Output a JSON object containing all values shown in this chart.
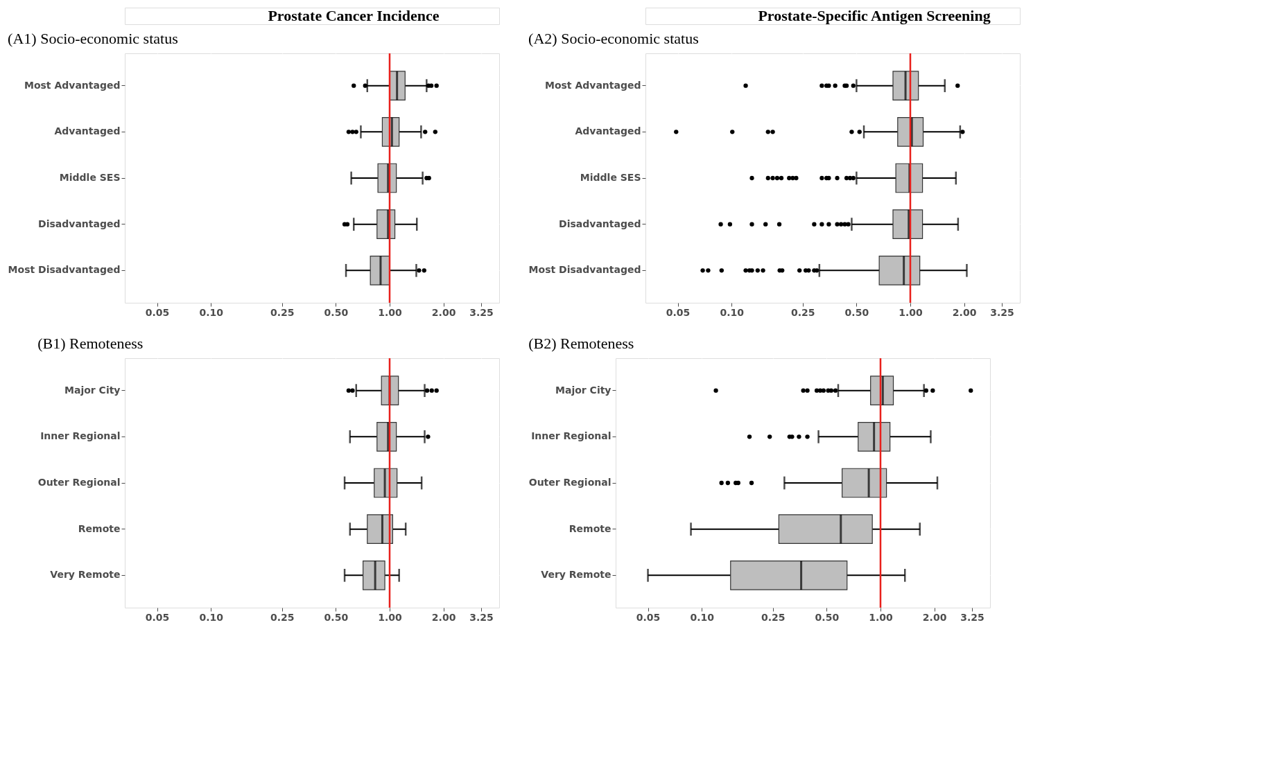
{
  "chart_data": [
    {
      "type": "box",
      "orientation": "horizontal",
      "annotations": [
        "Prostate Cancer Incidence"
      ],
      "title": "(A1) Socio-economic status",
      "color": "#bebebe",
      "grid": true,
      "log": "x",
      "categories": [
        "Most Advantaged",
        "Advantaged",
        "Middle SES",
        "Disadvantaged",
        "Most Disadvantaged"
      ],
      "boxes": [
        {
          "low": 0.75,
          "q1": 1.0,
          "median": 1.1,
          "q3": 1.22,
          "high": 1.61,
          "outliers": [
            0.63,
            0.73,
            1.65,
            1.71,
            1.83
          ]
        },
        {
          "low": 0.69,
          "q1": 0.91,
          "median": 1.03,
          "q3": 1.13,
          "high": 1.5,
          "outliers": [
            0.59,
            0.62,
            0.65,
            1.58,
            1.8
          ]
        },
        {
          "low": 0.61,
          "q1": 0.86,
          "median": 0.98,
          "q3": 1.09,
          "high": 1.53,
          "outliers": [
            1.61,
            1.66
          ]
        },
        {
          "low": 0.63,
          "q1": 0.85,
          "median": 0.98,
          "q3": 1.07,
          "high": 1.42,
          "outliers": [
            0.56,
            0.58
          ]
        },
        {
          "low": 0.57,
          "q1": 0.78,
          "median": 0.89,
          "q3": 1.0,
          "high": 1.41,
          "outliers": [
            1.46,
            1.56
          ]
        }
      ],
      "xlim": [
        0.033,
        4.1
      ],
      "xticks": [
        0.05,
        {
          "value": 0.1,
          "label": "0.10"
        },
        0.25,
        {
          "value": 0.5,
          "label": "0.50"
        },
        {
          "value": 1,
          "label": "1.00"
        },
        {
          "value": 2,
          "label": "2.00"
        },
        3.25
      ],
      "ref_lines": [
        {
          "axis": "x",
          "value": 1,
          "color": "#e8201c"
        }
      ]
    },
    {
      "type": "box",
      "orientation": "horizontal",
      "annotations": [
        "Prostate-Specific Antigen Screening"
      ],
      "title": "(A2) Socio-economic status",
      "color": "#bebebe",
      "grid": true,
      "log": "x",
      "categories": [
        "Most Advantaged",
        "Advantaged",
        "Middle SES",
        "Disadvantaged",
        "Most Disadvantaged"
      ],
      "boxes": [
        {
          "low": 0.5,
          "q1": 0.8,
          "median": 0.94,
          "q3": 1.11,
          "high": 1.56,
          "outliers": [
            0.12,
            0.32,
            0.34,
            0.35,
            0.38,
            0.43,
            0.44,
            0.48,
            1.84
          ]
        },
        {
          "low": 0.55,
          "q1": 0.85,
          "median": 1.02,
          "q3": 1.18,
          "high": 1.9,
          "outliers": [
            0.049,
            0.101,
            0.16,
            0.17,
            0.47,
            0.52,
            1.96
          ]
        },
        {
          "low": 0.5,
          "q1": 0.83,
          "median": 0.99,
          "q3": 1.17,
          "high": 1.8,
          "outliers": [
            0.13,
            0.16,
            0.17,
            0.18,
            0.19,
            0.21,
            0.22,
            0.23,
            0.32,
            0.34,
            0.35,
            0.39,
            0.44,
            0.46,
            0.48
          ]
        },
        {
          "low": 0.47,
          "q1": 0.8,
          "median": 0.98,
          "q3": 1.17,
          "high": 1.85,
          "outliers": [
            0.087,
            0.098,
            0.13,
            0.155,
            0.185,
            0.29,
            0.32,
            0.35,
            0.39,
            0.41,
            0.43,
            0.45
          ]
        },
        {
          "low": 0.31,
          "q1": 0.67,
          "median": 0.92,
          "q3": 1.13,
          "high": 2.07,
          "outliers": [
            0.069,
            0.074,
            0.088,
            0.12,
            0.126,
            0.13,
            0.14,
            0.15,
            0.186,
            0.192,
            0.24,
            0.26,
            0.27,
            0.29,
            0.3
          ]
        }
      ],
      "xlim": [
        0.033,
        4.1
      ],
      "xticks": [
        0.05,
        {
          "value": 0.1,
          "label": "0.10"
        },
        0.25,
        {
          "value": 0.5,
          "label": "0.50"
        },
        {
          "value": 1,
          "label": "1.00"
        },
        {
          "value": 2,
          "label": "2.00"
        },
        3.25
      ],
      "ref_lines": [
        {
          "axis": "x",
          "value": 1,
          "color": "#e8201c"
        }
      ]
    },
    {
      "type": "box",
      "orientation": "horizontal",
      "title": "(B1) Remoteness",
      "color": "#bebebe",
      "grid": true,
      "log": "x",
      "categories": [
        "Major City",
        "Inner Regional",
        "Outer Regional",
        "Remote",
        "Very Remote"
      ],
      "boxes": [
        {
          "low": 0.65,
          "q1": 0.9,
          "median": 1.0,
          "q3": 1.12,
          "high": 1.57,
          "outliers": [
            0.59,
            0.62,
            1.62,
            1.72,
            1.83
          ]
        },
        {
          "low": 0.6,
          "q1": 0.85,
          "median": 0.98,
          "q3": 1.09,
          "high": 1.57,
          "outliers": [
            1.64
          ]
        },
        {
          "low": 0.56,
          "q1": 0.82,
          "median": 0.94,
          "q3": 1.1,
          "high": 1.51
        },
        {
          "low": 0.6,
          "q1": 0.75,
          "median": 0.91,
          "q3": 1.04,
          "high": 1.23
        },
        {
          "low": 0.56,
          "q1": 0.71,
          "median": 0.83,
          "q3": 0.94,
          "high": 1.13
        }
      ],
      "xlim": [
        0.033,
        4.1
      ],
      "xticks": [
        0.05,
        {
          "value": 0.1,
          "label": "0.10"
        },
        0.25,
        {
          "value": 0.5,
          "label": "0.50"
        },
        {
          "value": 1,
          "label": "1.00"
        },
        {
          "value": 2,
          "label": "2.00"
        },
        3.25
      ],
      "ref_lines": [
        {
          "axis": "x",
          "value": 1,
          "color": "#e8201c"
        }
      ]
    },
    {
      "type": "box",
      "orientation": "horizontal",
      "title": "(B2) Remoteness",
      "color": "#bebebe",
      "grid": true,
      "log": "x",
      "categories": [
        "Major City",
        "Inner Regional",
        "Outer Regional",
        "Remote",
        "Very Remote"
      ],
      "boxes": [
        {
          "low": 0.58,
          "q1": 0.88,
          "median": 1.03,
          "q3": 1.18,
          "high": 1.75,
          "outliers": [
            0.12,
            0.37,
            0.39,
            0.44,
            0.46,
            0.48,
            0.51,
            0.53,
            0.56,
            1.8,
            1.96,
            3.2
          ]
        },
        {
          "low": 0.45,
          "q1": 0.75,
          "median": 0.92,
          "q3": 1.13,
          "high": 1.91,
          "outliers": [
            0.185,
            0.24,
            0.31,
            0.32,
            0.35,
            0.39
          ]
        },
        {
          "low": 0.29,
          "q1": 0.61,
          "median": 0.86,
          "q3": 1.08,
          "high": 2.08,
          "outliers": [
            0.129,
            0.14,
            0.155,
            0.16,
            0.19
          ]
        },
        {
          "low": 0.087,
          "q1": 0.27,
          "median": 0.6,
          "q3": 0.9,
          "high": 1.66
        },
        {
          "low": 0.05,
          "q1": 0.145,
          "median": 0.36,
          "q3": 0.65,
          "high": 1.37
        }
      ],
      "xlim": [
        0.033,
        4.1
      ],
      "xticks": [
        0.05,
        {
          "value": 0.1,
          "label": "0.10"
        },
        0.25,
        {
          "value": 0.5,
          "label": "0.50"
        },
        {
          "value": 1,
          "label": "1.00"
        },
        {
          "value": 2,
          "label": "2.00"
        },
        3.25
      ],
      "ref_lines": [
        {
          "axis": "x",
          "value": 1,
          "color": "#e8201c"
        }
      ]
    }
  ]
}
